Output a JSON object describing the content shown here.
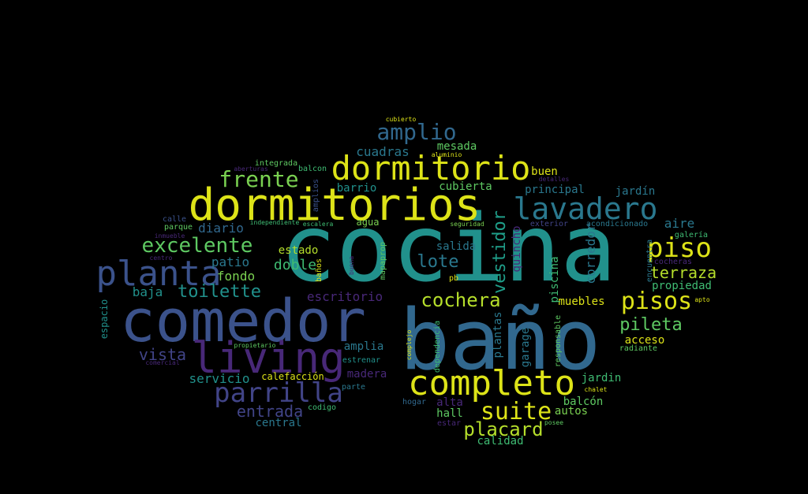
{
  "palette": {
    "background": "#000000",
    "yellow": "#dde318",
    "lime": "#b5de2b",
    "green": "#7ad151",
    "green2": "#5ec962",
    "green3": "#3fbc73",
    "teal": "#22a884",
    "teal2": "#1f9e89",
    "cyan": "#21918c",
    "blue": "#2a788e",
    "blue2": "#31688e",
    "indigo": "#3b528b",
    "indigo2": "#414487",
    "purple": "#482878",
    "purple2": "#46085c"
  },
  "words": [
    {
      "text": "cocina",
      "color": "cyan"
    },
    {
      "text": "baño",
      "color": "blue2"
    },
    {
      "text": "comedor",
      "color": "indigo"
    },
    {
      "text": "dormitorios",
      "color": "yellow"
    },
    {
      "text": "dormitorio",
      "color": "yellow"
    },
    {
      "text": "living",
      "color": "purple"
    },
    {
      "text": "completo",
      "color": "yellow"
    },
    {
      "text": "planta",
      "color": "indigo"
    },
    {
      "text": "lavadero",
      "color": "blue"
    },
    {
      "text": "parrilla",
      "color": "indigo2"
    },
    {
      "text": "amplio",
      "color": "blue2"
    },
    {
      "text": "piso",
      "color": "yellow"
    },
    {
      "text": "pisos",
      "color": "yellow"
    },
    {
      "text": "suite",
      "color": "yellow"
    },
    {
      "text": "cochera",
      "color": "lime"
    },
    {
      "text": "frente",
      "color": "green"
    },
    {
      "text": "excelente",
      "color": "green2"
    },
    {
      "text": "placard",
      "color": "lime"
    },
    {
      "text": "pileta",
      "color": "green2"
    },
    {
      "text": "toilette",
      "color": "cyan"
    },
    {
      "text": "terraza",
      "color": "lime"
    },
    {
      "text": "lote",
      "color": "blue"
    },
    {
      "text": "entrada",
      "color": "indigo2"
    },
    {
      "text": "vista",
      "color": "indigo2"
    },
    {
      "text": "vestidor",
      "color": "teal2"
    },
    {
      "text": "patio",
      "color": "blue"
    },
    {
      "text": "diario",
      "color": "blue2"
    },
    {
      "text": "baja",
      "color": "cyan"
    },
    {
      "text": "fondo",
      "color": "green"
    },
    {
      "text": "doble",
      "color": "green3"
    },
    {
      "text": "estado",
      "color": "lime"
    },
    {
      "text": "salida",
      "color": "blue"
    },
    {
      "text": "cuadras",
      "color": "blue"
    },
    {
      "text": "mesada",
      "color": "green2"
    },
    {
      "text": "cubierta",
      "color": "green2"
    },
    {
      "text": "barrio",
      "color": "cyan"
    },
    {
      "text": "buen",
      "color": "yellow"
    },
    {
      "text": "principal",
      "color": "blue"
    },
    {
      "text": "jardín",
      "color": "blue"
    },
    {
      "text": "aire",
      "color": "blue"
    },
    {
      "text": "propiedad",
      "color": "green3"
    },
    {
      "text": "muebles",
      "color": "yellow"
    },
    {
      "text": "acceso",
      "color": "yellow"
    },
    {
      "text": "servicio",
      "color": "cyan"
    },
    {
      "text": "escritorio",
      "color": "purple"
    },
    {
      "text": "ampliа",
      "color": "blue"
    },
    {
      "text": "madera",
      "color": "purple"
    },
    {
      "text": "calefacción",
      "color": "yellow"
    },
    {
      "text": "alta",
      "color": "purple"
    },
    {
      "text": "hall",
      "color": "green2"
    },
    {
      "text": "autos",
      "color": "green"
    },
    {
      "text": "balcón",
      "color": "green2"
    },
    {
      "text": "jardin",
      "color": "green3"
    },
    {
      "text": "central",
      "color": "blue"
    },
    {
      "text": "calidad",
      "color": "green3"
    },
    {
      "text": "integrada",
      "color": "green2"
    },
    {
      "text": "agua",
      "color": "green"
    },
    {
      "text": "corredor",
      "color": "blue"
    },
    {
      "text": "piscina",
      "color": "green3"
    },
    {
      "text": "quincho",
      "color": "purple"
    },
    {
      "text": "plantas",
      "color": "blue"
    },
    {
      "text": "garage",
      "color": "blue"
    },
    {
      "text": "espacio",
      "color": "cyan"
    },
    {
      "text": "acondicionado",
      "color": "blue"
    },
    {
      "text": "exterior",
      "color": "indigo2"
    },
    {
      "text": "galería",
      "color": "green3"
    },
    {
      "text": "encuentra",
      "color": "blue"
    },
    {
      "text": "cocheras",
      "color": "purple"
    },
    {
      "text": "radiante",
      "color": "green2"
    },
    {
      "text": "apto",
      "color": "yellow"
    },
    {
      "text": "chalet",
      "color": "yellow"
    },
    {
      "text": "posee",
      "color": "green2"
    },
    {
      "text": "aluminio",
      "color": "yellow"
    },
    {
      "text": "cubierto",
      "color": "yellow"
    },
    {
      "text": "aberturas",
      "color": "purple"
    },
    {
      "text": "balcon",
      "color": "green3"
    },
    {
      "text": "detalles",
      "color": "purple"
    },
    {
      "text": "amplios",
      "color": "indigo"
    },
    {
      "text": "calle",
      "color": "indigo"
    },
    {
      "text": "parque",
      "color": "green2"
    },
    {
      "text": "inmueble",
      "color": "purple"
    },
    {
      "text": "independiente",
      "color": "green3"
    },
    {
      "text": "escalera",
      "color": "green3"
    },
    {
      "text": "seguridad",
      "color": "green"
    },
    {
      "text": "centro",
      "color": "purple"
    },
    {
      "text": "mapaprop",
      "color": "green2"
    },
    {
      "text": "buena",
      "color": "purple"
    },
    {
      "text": "baños",
      "color": "yellow"
    },
    {
      "text": "pb",
      "color": "yellow"
    },
    {
      "text": "propietario",
      "color": "green2"
    },
    {
      "text": "comercial",
      "color": "purple"
    },
    {
      "text": "complejo",
      "color": "yellow"
    },
    {
      "text": "dependencia",
      "color": "green3"
    },
    {
      "text": "responsable",
      "color": "green2"
    },
    {
      "text": "estrenar",
      "color": "cyan"
    },
    {
      "text": "parte",
      "color": "blue"
    },
    {
      "text": "codigo",
      "color": "green3"
    },
    {
      "text": "hogar",
      "color": "blue2"
    },
    {
      "text": "estar",
      "color": "purple"
    }
  ]
}
